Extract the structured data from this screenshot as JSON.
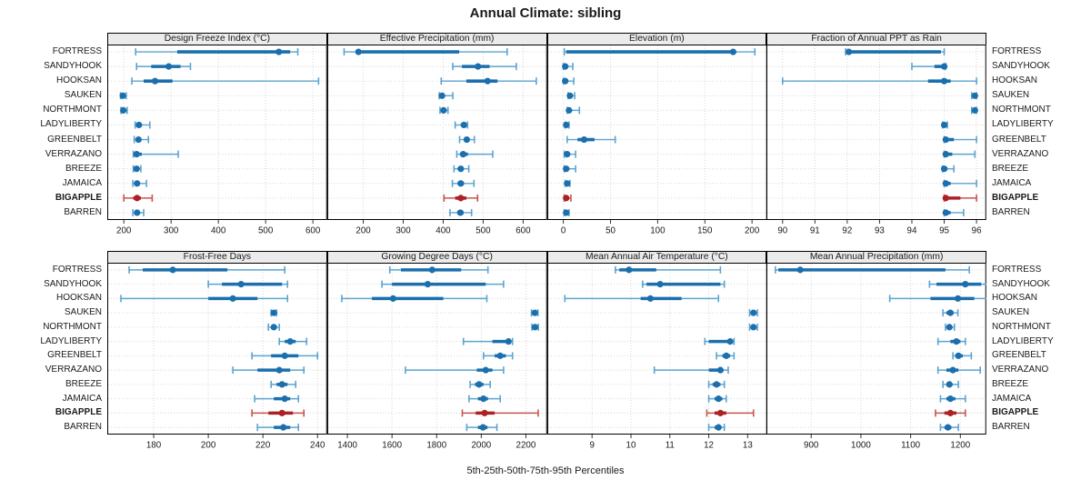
{
  "title": "Annual Climate: sibling",
  "caption": "5th-25th-50th-75th-95th Percentiles",
  "percentile_labels": [
    "5th",
    "25th",
    "50th",
    "75th",
    "95th"
  ],
  "stations": [
    "FORTRESS",
    "SANDYHOOK",
    "HOOKSAN",
    "SAUKEN",
    "NORTHMONT",
    "LADYLIBERTY",
    "GREENBELT",
    "VERRAZANO",
    "BREEZE",
    "JAMAICA",
    "BIGAPPLE",
    "BARREN"
  ],
  "highlight_station": "BIGAPPLE",
  "colors": {
    "main": "#1c6fad",
    "light": "#5ba3d0",
    "highlight_main": "#ab2124",
    "highlight_light": "#c65550",
    "grid": "#d8d8d8",
    "strip_bg": "#ebebeb",
    "border": "#000000"
  },
  "chart_data": [
    {
      "type": "dotplot-percentiles",
      "title": "Design Freeze Index (°C)",
      "grid": true,
      "xlim": [
        165,
        630
      ],
      "ticks": [
        200,
        300,
        400,
        500,
        600
      ],
      "values": [
        [
          225,
          313,
          528,
          552,
          568
        ],
        [
          227,
          258,
          295,
          320,
          341
        ],
        [
          217,
          242,
          266,
          303,
          612
        ],
        [
          193,
          196,
          198,
          201,
          205
        ],
        [
          194,
          197,
          199,
          202,
          207
        ],
        [
          224,
          228,
          232,
          238,
          255
        ],
        [
          222,
          227,
          231,
          237,
          252
        ],
        [
          220,
          223,
          227,
          238,
          315
        ],
        [
          220,
          224,
          227,
          230,
          236
        ],
        [
          219,
          224,
          228,
          233,
          248
        ],
        [
          200,
          220,
          228,
          236,
          260
        ],
        [
          219,
          224,
          228,
          232,
          242
        ]
      ]
    },
    {
      "type": "dotplot-percentiles",
      "title": "Effective Precipitation (mm)",
      "grid": true,
      "xlim": [
        110,
        660
      ],
      "ticks": [
        200,
        300,
        400,
        500,
        600
      ],
      "values": [
        [
          152,
          183,
          188,
          440,
          560
        ],
        [
          424,
          447,
          487,
          516,
          583
        ],
        [
          395,
          458,
          511,
          536,
          633
        ],
        [
          390,
          394,
          397,
          404,
          424
        ],
        [
          392,
          397,
          401,
          405,
          412
        ],
        [
          430,
          444,
          452,
          456,
          461
        ],
        [
          441,
          452,
          459,
          466,
          478
        ],
        [
          434,
          442,
          450,
          462,
          524
        ],
        [
          427,
          437,
          444,
          450,
          464
        ],
        [
          423,
          436,
          444,
          452,
          477
        ],
        [
          402,
          430,
          444,
          458,
          486
        ],
        [
          417,
          435,
          443,
          451,
          471
        ]
      ]
    },
    {
      "type": "dotplot-percentiles",
      "title": "Elevation (m)",
      "grid": true,
      "xlim": [
        -17,
        216
      ],
      "ticks": [
        0,
        50,
        100,
        150,
        200
      ],
      "values": [
        [
          1,
          3,
          180,
          183,
          203
        ],
        [
          0,
          1,
          2,
          5,
          10
        ],
        [
          0,
          1,
          2,
          5,
          11
        ],
        [
          5,
          6,
          7,
          9,
          12
        ],
        [
          4,
          5,
          6,
          8,
          17
        ],
        [
          2,
          2,
          3,
          4,
          6
        ],
        [
          4,
          15,
          22,
          33,
          55
        ],
        [
          1,
          2,
          4,
          7,
          13
        ],
        [
          1,
          2,
          3,
          5,
          13
        ],
        [
          2,
          3,
          4,
          5,
          7
        ],
        [
          1,
          2,
          3,
          5,
          8
        ],
        [
          1,
          2,
          3,
          4,
          6
        ]
      ]
    },
    {
      "type": "dotplot-percentiles",
      "title": "Fraction of Annual PPT as Rain",
      "grid": true,
      "xlim": [
        89.5,
        96.3
      ],
      "ticks": [
        90,
        91,
        92,
        93,
        94,
        95,
        96
      ],
      "values": [
        [
          91.95,
          92.0,
          92.05,
          94.9,
          95.0
        ],
        [
          94.0,
          94.7,
          95.0,
          95.0,
          95.05
        ],
        [
          90.0,
          94.5,
          95.0,
          95.2,
          96.0
        ],
        [
          95.85,
          95.9,
          95.95,
          96.0,
          96.0
        ],
        [
          95.85,
          95.9,
          95.95,
          96.0,
          96.0
        ],
        [
          94.95,
          95.0,
          95.0,
          95.05,
          95.1
        ],
        [
          95.0,
          95.0,
          95.05,
          95.3,
          96.0
        ],
        [
          95.0,
          95.0,
          95.05,
          95.25,
          95.95
        ],
        [
          94.95,
          95.0,
          95.0,
          95.1,
          95.3
        ],
        [
          95.0,
          95.0,
          95.05,
          95.2,
          96.0
        ],
        [
          95.0,
          95.0,
          95.05,
          95.5,
          96.0
        ],
        [
          95.0,
          95.0,
          95.05,
          95.2,
          95.6
        ]
      ]
    },
    {
      "type": "dotplot-percentiles",
      "title": "Frost-Free Days",
      "grid": true,
      "xlim": [
        163,
        243.5
      ],
      "ticks": [
        180,
        200,
        220,
        240
      ],
      "values": [
        [
          171,
          176,
          187,
          207,
          228
        ],
        [
          200,
          205,
          212,
          227,
          229
        ],
        [
          168,
          200,
          209,
          218,
          229
        ],
        [
          223,
          223.5,
          224,
          224.5,
          225
        ],
        [
          222,
          223,
          224,
          225,
          226
        ],
        [
          226,
          228,
          230,
          232,
          236
        ],
        [
          216,
          223,
          228,
          233,
          240
        ],
        [
          209,
          218,
          226,
          230,
          235
        ],
        [
          223,
          225,
          227,
          229,
          232
        ],
        [
          217,
          224,
          228,
          230,
          233
        ],
        [
          216,
          222,
          227,
          231,
          235
        ],
        [
          218,
          224,
          227.5,
          230,
          233
        ]
      ]
    },
    {
      "type": "dotplot-percentiles",
      "title": "Growing Degree Days (°C)",
      "grid": true,
      "xlim": [
        1310,
        2295
      ],
      "ticks": [
        1400,
        1600,
        1800,
        2000,
        2200
      ],
      "values": [
        [
          1590,
          1640,
          1780,
          1910,
          2030
        ],
        [
          1555,
          1600,
          1760,
          2020,
          2100
        ],
        [
          1375,
          1510,
          1605,
          1830,
          2025
        ],
        [
          2225,
          2232,
          2240,
          2246,
          2254
        ],
        [
          2227,
          2234,
          2241,
          2248,
          2256
        ],
        [
          1920,
          2050,
          2122,
          2132,
          2140
        ],
        [
          2010,
          2060,
          2085,
          2110,
          2140
        ],
        [
          1660,
          1980,
          2020,
          2050,
          2100
        ],
        [
          1950,
          1972,
          1990,
          2010,
          2040
        ],
        [
          1945,
          1985,
          2010,
          2030,
          2085
        ],
        [
          1915,
          1975,
          2015,
          2060,
          2255
        ],
        [
          1935,
          1985,
          2008,
          2028,
          2070
        ]
      ]
    },
    {
      "type": "dotplot-percentiles",
      "title": "Mean Annual Air Temperature (°C)",
      "grid": true,
      "xlim": [
        7.85,
        13.5
      ],
      "ticks": [
        9,
        10,
        11,
        12,
        13
      ],
      "values": [
        [
          9.6,
          9.7,
          9.95,
          10.65,
          12.3
        ],
        [
          10.3,
          10.4,
          10.75,
          12.3,
          12.4
        ],
        [
          8.3,
          10.25,
          10.5,
          11.3,
          12.25
        ],
        [
          13.05,
          13.1,
          13.15,
          13.2,
          13.25
        ],
        [
          13.05,
          13.1,
          13.15,
          13.2,
          13.25
        ],
        [
          11.9,
          12.0,
          12.55,
          12.6,
          12.65
        ],
        [
          12.2,
          12.35,
          12.45,
          12.55,
          12.65
        ],
        [
          10.6,
          12.0,
          12.3,
          12.35,
          12.5
        ],
        [
          12.0,
          12.1,
          12.2,
          12.3,
          12.4
        ],
        [
          12.0,
          12.15,
          12.25,
          12.35,
          12.45
        ],
        [
          11.95,
          12.15,
          12.3,
          12.45,
          13.15
        ],
        [
          12.0,
          12.15,
          12.25,
          12.3,
          12.4
        ]
      ]
    },
    {
      "type": "dotplot-percentiles",
      "title": "Mean Annual Precipitation (mm)",
      "grid": true,
      "xlim": [
        810,
        1252
      ],
      "ticks": [
        900,
        1000,
        1100,
        1200
      ],
      "values": [
        [
          828,
          834,
          878,
          1170,
          1218
        ],
        [
          1138,
          1152,
          1210,
          1242,
          1262
        ],
        [
          1058,
          1140,
          1195,
          1228,
          1262
        ],
        [
          1165,
          1172,
          1180,
          1186,
          1195
        ],
        [
          1170,
          1174,
          1178,
          1182,
          1188
        ],
        [
          1155,
          1180,
          1192,
          1200,
          1210
        ],
        [
          1185,
          1190,
          1196,
          1205,
          1222
        ],
        [
          1155,
          1172,
          1185,
          1196,
          1240
        ],
        [
          1165,
          1172,
          1178,
          1184,
          1196
        ],
        [
          1160,
          1172,
          1180,
          1190,
          1210
        ],
        [
          1150,
          1168,
          1180,
          1192,
          1210
        ],
        [
          1160,
          1168,
          1175,
          1182,
          1196
        ]
      ]
    }
  ]
}
